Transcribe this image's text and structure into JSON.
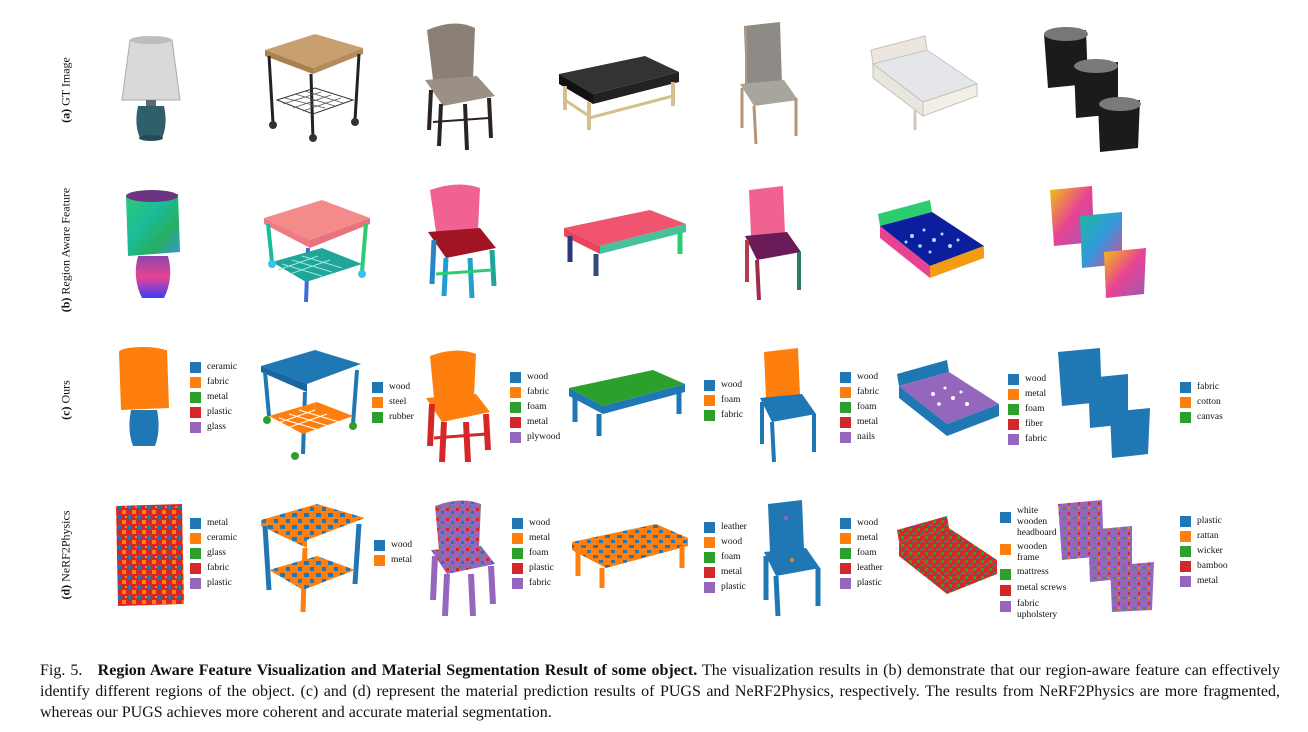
{
  "rows": {
    "a": {
      "tag": "(a)",
      "label": "GT Image"
    },
    "b": {
      "tag": "(b)",
      "label": "Region Aware Feature"
    },
    "c": {
      "tag": "(c)",
      "label": "Ours"
    },
    "d": {
      "tag": "(d)",
      "label": "NeRF2Physics"
    }
  },
  "objects": [
    "lamp",
    "cart-table",
    "bar-stool",
    "bench",
    "chair",
    "bed",
    "baskets"
  ],
  "colors": {
    "blue": "#1f77b4",
    "orange": "#ff7f0e",
    "green": "#2ca02c",
    "red": "#d62728",
    "purple": "#9467bd"
  },
  "legends_ours": [
    [
      "ceramic",
      "fabric",
      "metal",
      "plastic",
      "glass"
    ],
    [
      "wood",
      "steel",
      "rubber"
    ],
    [
      "wood",
      "fabric",
      "foam",
      "metal",
      "plywood"
    ],
    [
      "wood",
      "foam",
      "fabric"
    ],
    [
      "wood",
      "fabric",
      "foam",
      "metal",
      "nails"
    ],
    [
      "wood",
      "metal",
      "foam",
      "fiber",
      "fabric"
    ],
    [
      "fabric",
      "cotton",
      "canvas"
    ]
  ],
  "legends_nerf": [
    [
      "metal",
      "ceramic",
      "glass",
      "fabric",
      "plastic"
    ],
    [
      "wood",
      "metal"
    ],
    [
      "wood",
      "metal",
      "foam",
      "plastic",
      "fabric"
    ],
    [
      "leather",
      "wood",
      "foam",
      "metal",
      "plastic"
    ],
    [
      "wood",
      "metal",
      "foam",
      "leather",
      "plastic"
    ],
    [
      "white wooden headboard",
      "wooden frame",
      "mattress",
      "metal screws",
      "fabric upholstery"
    ],
    [
      "plastic",
      "rattan",
      "wicker",
      "bamboo",
      "metal"
    ]
  ],
  "caption": {
    "fig": "Fig. 5.",
    "title": "Region Aware Feature Visualization and Material Segmentation Result of some object.",
    "body": "The visualization results in (b) demonstrate that our region-aware feature can effectively identify different regions of the object. (c) and (d) represent the material prediction results of PUGS and NeRF2Physics, respectively. The results from NeRF2Physics are more fragmented, whereas our PUGS achieves more coherent and accurate material segmentation."
  }
}
